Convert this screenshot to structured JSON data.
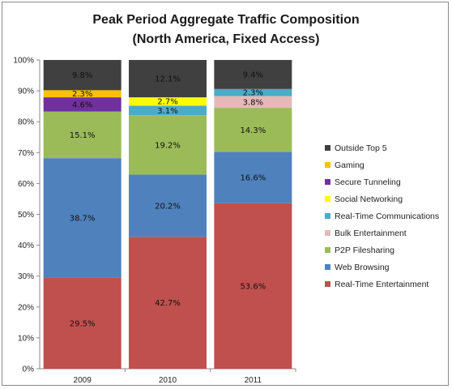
{
  "chart_data": {
    "type": "bar",
    "stacked": true,
    "title_lines": [
      "Peak Period Aggregate Traffic Composition",
      "(North America, Fixed Access)"
    ],
    "categories": [
      "2009",
      "2010",
      "2011"
    ],
    "ylim": [
      0,
      100
    ],
    "y_ticks": [
      "0%",
      "10%",
      "20%",
      "30%",
      "40%",
      "50%",
      "60%",
      "70%",
      "80%",
      "90%",
      "100%"
    ],
    "grid": false,
    "legend_position": "right",
    "series": [
      {
        "name": "Real-Time Entertainment",
        "color": "#c0504d",
        "values": [
          29.5,
          42.7,
          53.6
        ],
        "labels": [
          "29.5%",
          "42.7%",
          "53.6%"
        ]
      },
      {
        "name": "Web Browsing",
        "color": "#4f81bd",
        "values": [
          38.7,
          20.2,
          16.6
        ],
        "labels": [
          "38.7%",
          "20.2%",
          "16.6%"
        ]
      },
      {
        "name": "P2P Filesharing",
        "color": "#9bbb59",
        "values": [
          15.1,
          19.2,
          14.3
        ],
        "labels": [
          "15.1%",
          "19.2%",
          "14.3%"
        ]
      },
      {
        "name": "Bulk Entertainment",
        "color": "#e6b9b8",
        "values": [
          0,
          0,
          3.8
        ],
        "labels": [
          "",
          "",
          "3.8%"
        ]
      },
      {
        "name": "Real-Time Communications",
        "color": "#4bacc6",
        "values": [
          0,
          3.1,
          2.3
        ],
        "labels": [
          "",
          "3.1%",
          "2.3%"
        ]
      },
      {
        "name": "Social Networking",
        "color": "#ffff00",
        "values": [
          0,
          2.7,
          0
        ],
        "labels": [
          "",
          "2.7%",
          ""
        ]
      },
      {
        "name": "Secure Tunneling",
        "color": "#7030a0",
        "values": [
          4.6,
          0,
          0
        ],
        "labels": [
          "4.6%",
          "",
          ""
        ]
      },
      {
        "name": "Gaming",
        "color": "#ffc000",
        "values": [
          2.3,
          0,
          0
        ],
        "labels": [
          "2.3%",
          "",
          ""
        ]
      },
      {
        "name": "Outside Top 5",
        "color": "#404040",
        "values": [
          9.8,
          12.1,
          9.4
        ],
        "labels": [
          "9.8%",
          "12.1%",
          "9.4%"
        ]
      }
    ],
    "legend_order": [
      "Outside Top 5",
      "Gaming",
      "Secure Tunneling",
      "Social Networking",
      "Real-Time Communications",
      "Bulk Entertainment",
      "P2P Filesharing",
      "Web Browsing",
      "Real-Time Entertainment"
    ]
  }
}
